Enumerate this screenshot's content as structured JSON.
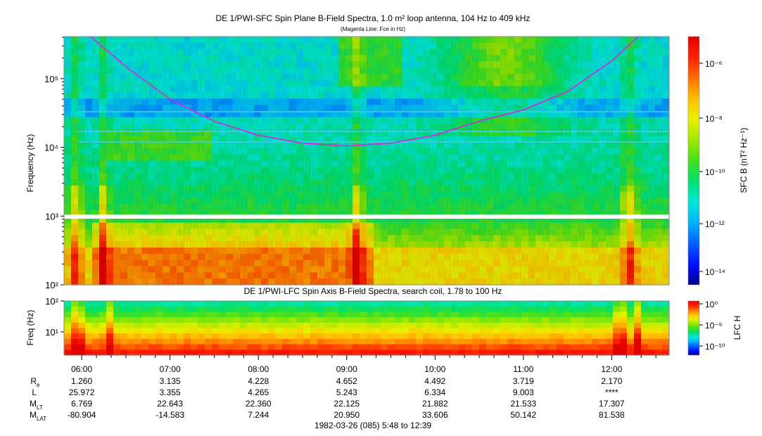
{
  "top_panel": {
    "title": "DE 1/PWI-SFC  Spin Plane B-Field Spectra, 1.0 m² loop antenna, 104 Hz to 409 kHz",
    "subtitle": "(Magenta Line: Fce in Hz)",
    "ylabel": "Frequency (Hz)",
    "yticks": [
      "10²",
      "10³",
      "10⁴",
      "10⁵"
    ],
    "colorbar_label": "SFC B (nT² Hz⁻¹)",
    "colorbar_ticks": [
      "10⁻⁶",
      "10⁻⁸",
      "10⁻¹⁰",
      "10⁻¹²",
      "10⁻¹⁴"
    ]
  },
  "bottom_panel": {
    "title": "DE 1/PWI-LFC  Spin Axis B-Field Spectra, search coil, 1.78 to 100 Hz",
    "ylabel": "Freq (Hz)",
    "yticks": [
      "10²",
      "10¹"
    ],
    "colorbar_label": "LFC H",
    "colorbar_ticks": [
      "10⁰",
      "10⁻⁵",
      "10⁻¹⁰"
    ]
  },
  "ephemeris": {
    "times": [
      "06:00",
      "07:00",
      "08:00",
      "09:00",
      "10:00",
      "11:00",
      "12:00"
    ],
    "rows": [
      {
        "label": "R",
        "sub": "e",
        "values": [
          "1.260",
          "3.135",
          "4.228",
          "4.652",
          "4.492",
          "3.719",
          "2.170"
        ]
      },
      {
        "label": "L",
        "sub": "",
        "values": [
          "25.972",
          "3.355",
          "4.265",
          "5.243",
          "6.334",
          "9.003",
          "****"
        ]
      },
      {
        "label": "M",
        "sub": "LT",
        "values": [
          "6.769",
          "22.643",
          "22.360",
          "22.125",
          "21.882",
          "21.533",
          "17.307"
        ]
      },
      {
        "label": "M",
        "sub": "LAT",
        "values": [
          "-80.904",
          "-14.583",
          "7.244",
          "20.950",
          "33.606",
          "50.142",
          "81.538"
        ]
      }
    ],
    "footer": "1982-03-26 (085) 5:48 to 12:39"
  },
  "colors": {
    "colormap": [
      "#00008c",
      "#0010ff",
      "#0060ff",
      "#00b0ff",
      "#00e8d8",
      "#00e070",
      "#40e020",
      "#a0e800",
      "#e8f000",
      "#ffc000",
      "#ff7000",
      "#ff2000",
      "#e00000"
    ],
    "fce_line": "#e020e0"
  },
  "chart_data": [
    {
      "type": "heatmap",
      "title": "DE 1/PWI-SFC  Spin Plane B-Field Spectra, 1.0 m² loop antenna, 104 Hz to 409 kHz",
      "xlabel": "",
      "ylabel": "Frequency (Hz)",
      "x_start": "05:48",
      "x_end": "12:39",
      "xticks": [
        "06:00",
        "07:00",
        "08:00",
        "09:00",
        "10:00",
        "11:00",
        "12:00"
      ],
      "ylim_hz": [
        100,
        409000
      ],
      "yscale": "log",
      "clim": [
        1e-15,
        1e-05
      ],
      "cscale": "log",
      "series": [
        {
          "name": "Fce in Hz",
          "time_hours": [
            6.1,
            6.5,
            7.0,
            7.5,
            8.0,
            8.5,
            9.0,
            9.5,
            10.0,
            10.5,
            11.0,
            11.5,
            12.0,
            12.3
          ],
          "values": [
            409000,
            150000,
            50000,
            24000,
            15000,
            11500,
            10500,
            11500,
            15000,
            24000,
            35000,
            65000,
            180000,
            409000
          ]
        }
      ]
    },
    {
      "type": "heatmap",
      "title": "DE 1/PWI-LFC  Spin Axis B-Field Spectra, search coil, 1.78 to 100 Hz",
      "xlabel": "",
      "ylabel": "Freq (Hz)",
      "ylim_hz": [
        1.78,
        100
      ],
      "yscale": "log",
      "clim": [
        1e-12,
        1
      ],
      "cscale": "log"
    }
  ]
}
